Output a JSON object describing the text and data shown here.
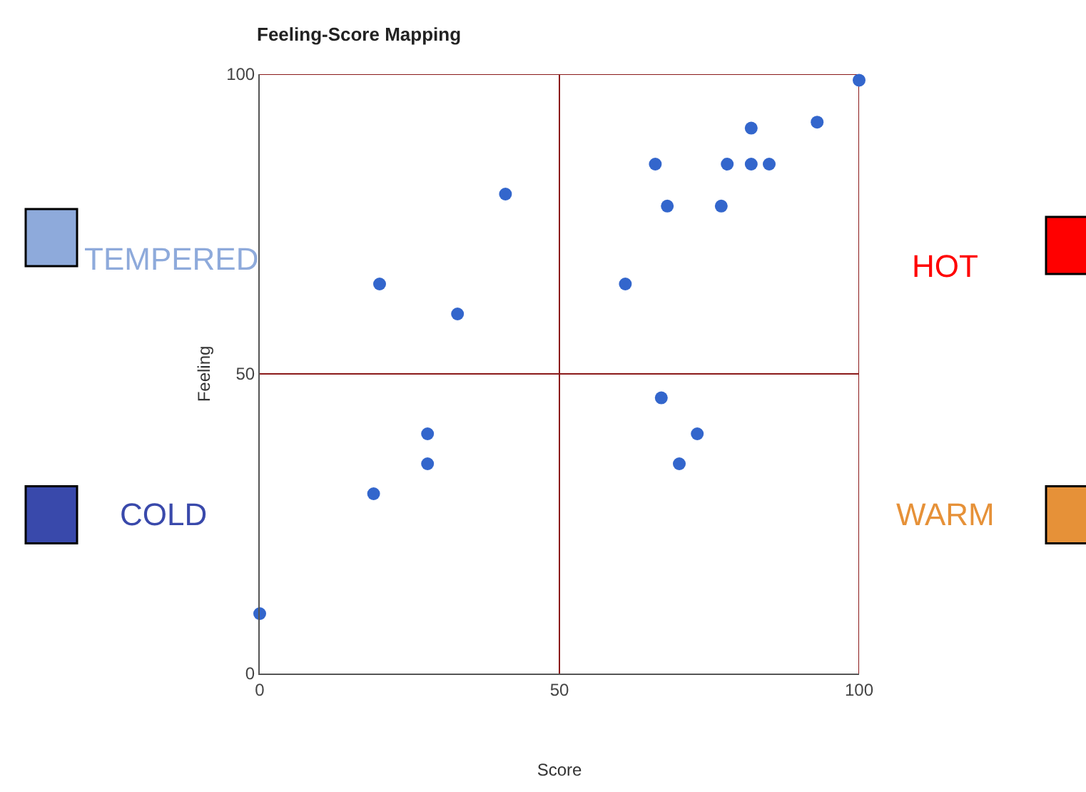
{
  "chart_data": {
    "type": "scatter",
    "title": "Feeling-Score Mapping",
    "xlabel": "Score",
    "ylabel": "Feeling",
    "x": [
      0,
      19,
      28,
      28,
      20,
      33,
      41,
      61,
      66,
      68,
      67,
      73,
      70,
      77,
      78,
      82,
      82,
      85,
      93,
      100
    ],
    "series": [
      {
        "color": "#3366cc",
        "values": [
          10,
          30,
          40,
          35,
          65,
          60,
          80,
          65,
          85,
          78,
          46,
          40,
          35,
          78,
          85,
          91,
          85,
          85,
          92,
          99
        ]
      }
    ],
    "xlim": [
      0,
      100
    ],
    "ylim": [
      0,
      100
    ],
    "xticks": [
      0,
      50,
      100
    ],
    "yticks": [
      0,
      50,
      100
    ],
    "grid": true,
    "marker": "circle",
    "annotations": [
      "TEMPERED",
      "HOT",
      "COLD",
      "WARM"
    ]
  }
}
